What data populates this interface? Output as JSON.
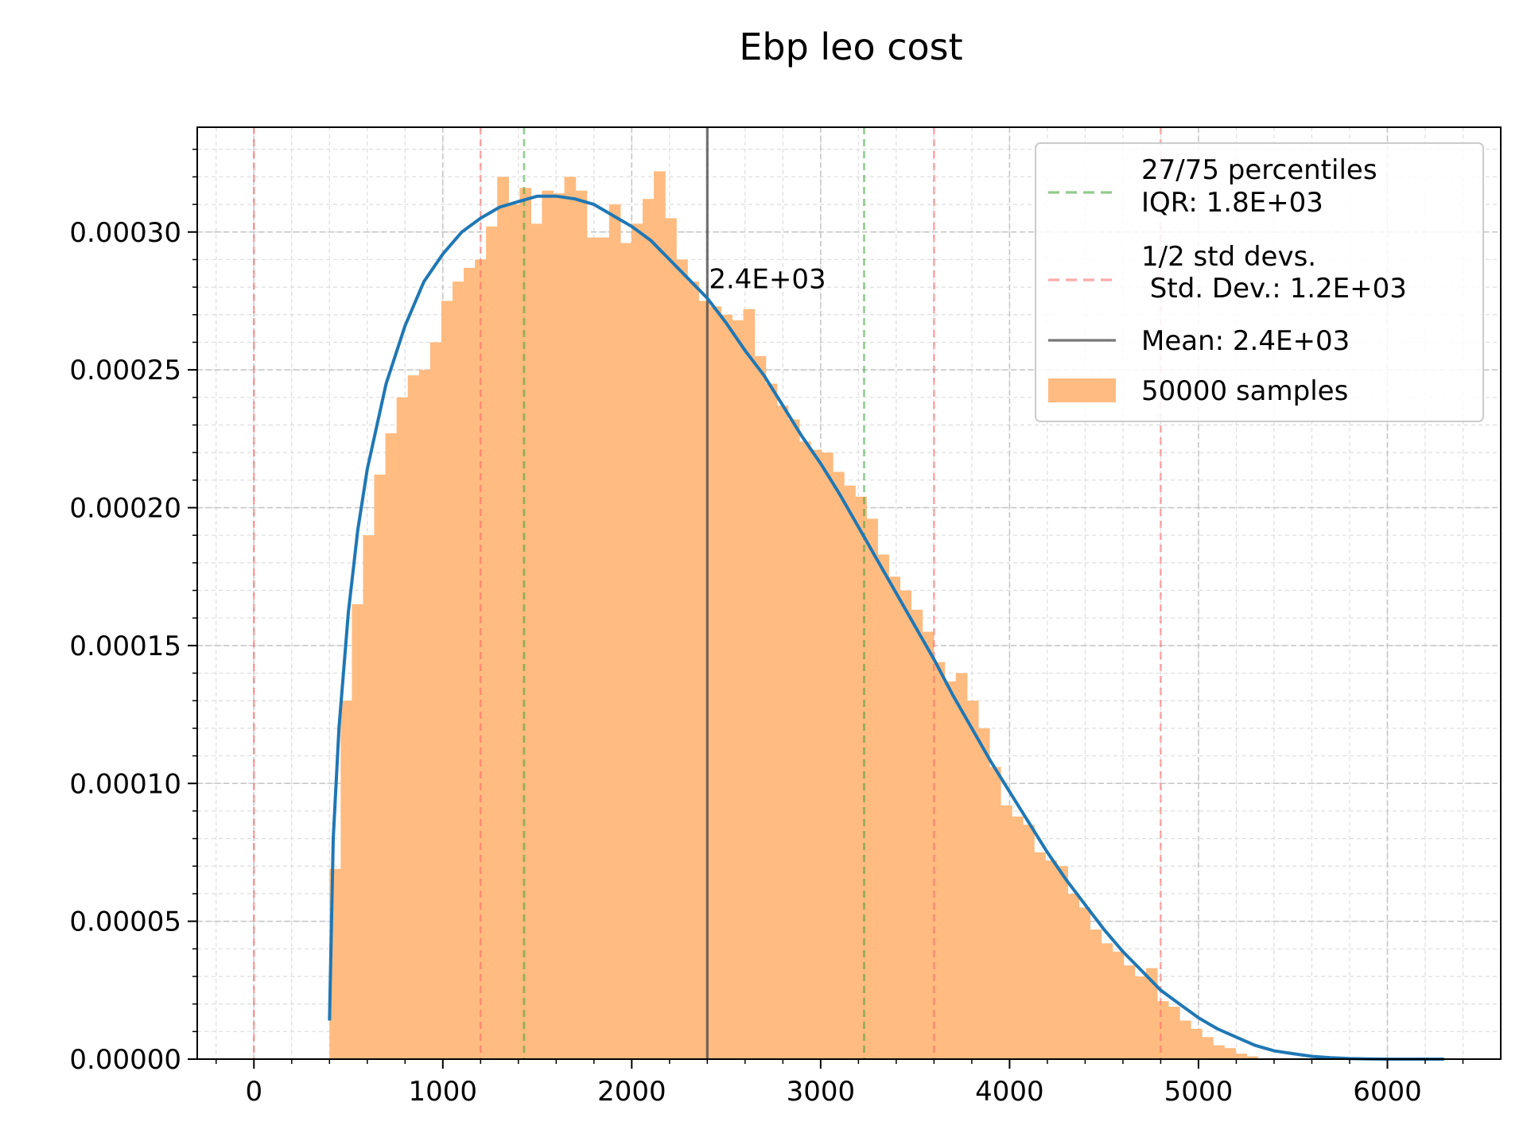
{
  "chart_data": {
    "type": "histogram",
    "title": "Ebp leo cost",
    "xlabel": "",
    "ylabel": "",
    "xlim": [
      -300,
      6600
    ],
    "ylim": [
      0,
      0.000338
    ],
    "grid": true,
    "grid_minor": true,
    "x_ticks": [
      0,
      1000,
      2000,
      3000,
      4000,
      5000,
      6000
    ],
    "x_tick_labels": [
      "0",
      "1000",
      "2000",
      "3000",
      "4000",
      "5000",
      "6000"
    ],
    "y_ticks": [
      0,
      5e-05,
      0.0001,
      0.00015,
      0.0002,
      0.00025,
      0.0003
    ],
    "y_tick_labels": [
      "0.00000",
      "0.00005",
      "0.00010",
      "0.00015",
      "0.00020",
      "0.00025",
      "0.00030"
    ],
    "histogram": {
      "name": "50000 samples",
      "color": "#ffbb80",
      "bin_start": 400,
      "bin_width": 59.2,
      "values": [
        6.9e-05,
        0.00013,
        0.000165,
        0.00019,
        0.000212,
        0.000227,
        0.00024,
        0.000248,
        0.00025,
        0.00026,
        0.000275,
        0.000282,
        0.000287,
        0.00029,
        0.000302,
        0.00032,
        0.00031,
        0.000316,
        0.000303,
        0.000315,
        0.000314,
        0.00032,
        0.000315,
        0.000298,
        0.000298,
        0.00031,
        0.000296,
        0.000303,
        0.000312,
        0.000322,
        0.000305,
        0.00029,
        0.000282,
        0.000275,
        0.000273,
        0.00027,
        0.000268,
        0.000272,
        0.000255,
        0.000245,
        0.000237,
        0.000232,
        0.000224,
        0.000221,
        0.00022,
        0.000213,
        0.000208,
        0.000204,
        0.000196,
        0.000183,
        0.000175,
        0.00017,
        0.000163,
        0.000155,
        0.000144,
        0.000137,
        0.00014,
        0.00013,
        0.00012,
        0.000106,
        9.2e-05,
        8.8e-05,
        8.5e-05,
        7.5e-05,
        7.2e-05,
        7e-05,
        6e-05,
        5.5e-05,
        4.7e-05,
        4.2e-05,
        3.9e-05,
        3.4e-05,
        3e-05,
        3.3e-05,
        2.1e-05,
        1.9e-05,
        1.4e-05,
        1.1e-05,
        8e-06,
        5e-06,
        4e-06,
        2e-06,
        1e-06
      ]
    },
    "fit_curve": {
      "color": "#1f77b4",
      "x": [
        400,
        420,
        450,
        500,
        550,
        600,
        700,
        800,
        900,
        1000,
        1100,
        1200,
        1300,
        1400,
        1500,
        1600,
        1700,
        1800,
        1900,
        2000,
        2100,
        2200,
        2300,
        2400,
        2500,
        2600,
        2700,
        2800,
        2900,
        3000,
        3100,
        3200,
        3300,
        3400,
        3500,
        3600,
        3700,
        3800,
        3900,
        4000,
        4100,
        4200,
        4300,
        4400,
        4500,
        4600,
        4700,
        4800,
        4900,
        5000,
        5100,
        5200,
        5300,
        5400,
        5500,
        5600,
        5700,
        5800,
        5900,
        6000,
        6100,
        6200,
        6300
      ],
      "y": [
        1.4e-05,
        8e-05,
        0.00012,
        0.000162,
        0.000192,
        0.000214,
        0.000245,
        0.000266,
        0.000282,
        0.000292,
        0.0003,
        0.000305,
        0.000309,
        0.000311,
        0.000313,
        0.000313,
        0.000312,
        0.00031,
        0.000306,
        0.000302,
        0.000297,
        0.00029,
        0.000283,
        0.000276,
        0.000267,
        0.000257,
        0.000248,
        0.000237,
        0.000226,
        0.000216,
        0.000205,
        0.000193,
        0.000181,
        0.000169,
        0.000157,
        0.000145,
        0.000132,
        0.00012,
        0.000108,
        9.7e-05,
        8.6e-05,
        7.5e-05,
        6.5e-05,
        5.6e-05,
        4.7e-05,
        3.9e-05,
        3.2e-05,
        2.5e-05,
        2e-05,
        1.5e-05,
        1.1e-05,
        8e-06,
        5e-06,
        3e-06,
        2e-06,
        1e-06,
        5e-07,
        2e-07,
        1e-07,
        0.0,
        0.0,
        0.0,
        0.0
      ]
    },
    "mean_line": {
      "x": 2400,
      "color": "#444444",
      "label": "2.4E+03"
    },
    "percentile_lines": {
      "x": [
        1430,
        3230
      ],
      "color": "#2ca02c"
    },
    "std_lines": {
      "x": [
        0,
        1200,
        3600,
        4800
      ],
      "color": "#ff6666"
    },
    "legend": {
      "placement": "top-right",
      "entries": [
        {
          "style": "dashed",
          "color": "#93c98f",
          "lines": [
            "27/75 percentiles",
            "IQR: 1.8E+03"
          ]
        },
        {
          "style": "dashed",
          "color": "#ffaaaa",
          "lines": [
            "1/2 std devs.",
            " Std. Dev.: 1.2E+03"
          ]
        },
        {
          "style": "solid",
          "color": "#777777",
          "lines": [
            "Mean: 2.4E+03"
          ]
        },
        {
          "style": "patch",
          "color": "#ffbb80",
          "lines": [
            "50000 samples"
          ]
        }
      ]
    }
  }
}
